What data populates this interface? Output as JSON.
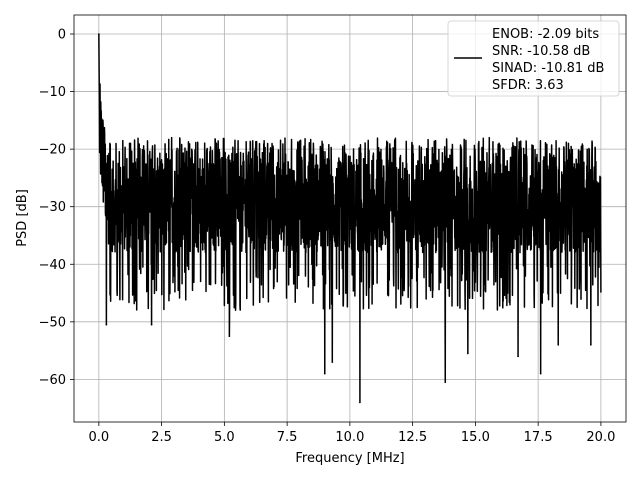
{
  "chart_data": {
    "type": "line",
    "xlabel": "Frequency [MHz]",
    "ylabel": "PSD [dB]",
    "xlim": [
      -0.99,
      21.0
    ],
    "ylim": [
      -67.4,
      3.3
    ],
    "xticks": [
      0.0,
      2.5,
      5.0,
      7.5,
      10.0,
      12.5,
      15.0,
      17.5,
      20.0
    ],
    "xtick_labels": [
      "0.0",
      "2.5",
      "5.0",
      "7.5",
      "10.0",
      "12.5",
      "15.0",
      "17.5",
      "20.0"
    ],
    "yticks": [
      0,
      -10,
      -20,
      -30,
      -40,
      -50,
      -60
    ],
    "ytick_labels": [
      "0",
      "−10",
      "−20",
      "−30",
      "−40",
      "−50",
      "−60"
    ],
    "grid": true,
    "legend_position": "top-right",
    "series": [
      {
        "color": "#000000",
        "x_range": [
          0.0,
          20.0
        ],
        "peak": {
          "x": 0.0,
          "y": 0.0
        },
        "floor_band": [
          -36,
          -24
        ],
        "upper_envelope": -18,
        "notable_dips": [
          {
            "x": 0.3,
            "y": -50.5
          },
          {
            "x": 2.1,
            "y": -50.5
          },
          {
            "x": 5.2,
            "y": -52.5
          },
          {
            "x": 9.0,
            "y": -59.0
          },
          {
            "x": 9.3,
            "y": -57.0
          },
          {
            "x": 10.4,
            "y": -64.0
          },
          {
            "x": 13.8,
            "y": -60.5
          },
          {
            "x": 14.7,
            "y": -55.5
          },
          {
            "x": 16.7,
            "y": -56.0
          },
          {
            "x": 17.6,
            "y": -59.0
          },
          {
            "x": 18.3,
            "y": -54.0
          },
          {
            "x": 19.6,
            "y": -54.0
          }
        ]
      }
    ],
    "legend_lines": [
      "ENOB: -2.09 bits",
      "SNR: -10.58 dB",
      "SINAD: -10.81 dB",
      "SFDR: 3.63"
    ]
  }
}
